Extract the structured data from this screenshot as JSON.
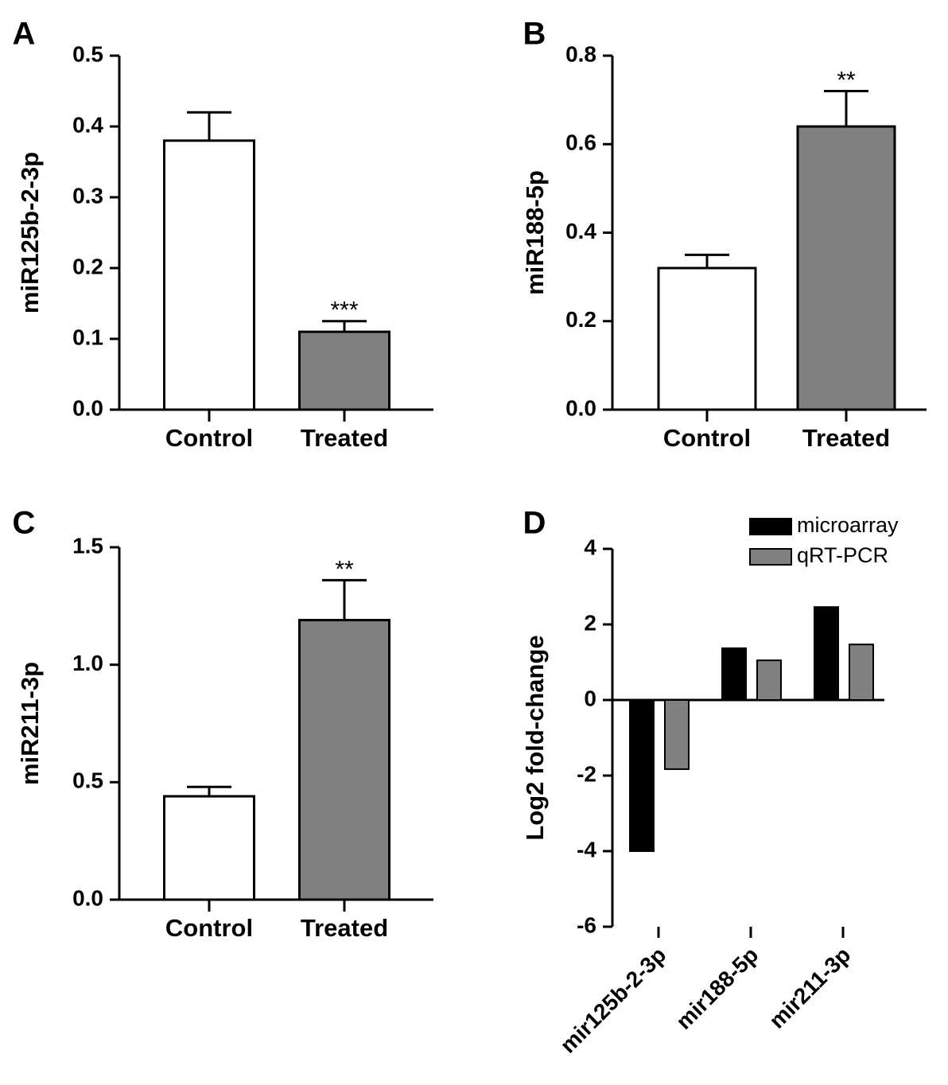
{
  "chart_data": [
    {
      "type": "bar",
      "panel": "A",
      "ylabel": "miR125b-2-3p",
      "categories": [
        "Control",
        "Treated"
      ],
      "values": [
        0.38,
        0.11
      ],
      "errors": [
        0.04,
        0.015
      ],
      "colors": [
        "#ffffff",
        "#808080"
      ],
      "significance": [
        null,
        "***"
      ],
      "ylim": [
        0,
        0.5
      ],
      "yticks": [
        {
          "value": 0,
          "label": "0.0"
        },
        0.1,
        0.2,
        0.3,
        0.4,
        0.5
      ]
    },
    {
      "type": "bar",
      "panel": "B",
      "ylabel": "miR188-5p",
      "categories": [
        "Control",
        "Treated"
      ],
      "values": [
        0.32,
        0.64
      ],
      "errors": [
        0.03,
        0.08
      ],
      "colors": [
        "#ffffff",
        "#808080"
      ],
      "significance": [
        null,
        "**"
      ],
      "ylim": [
        0,
        0.8
      ],
      "yticks": [
        {
          "value": 0,
          "label": "0.0"
        },
        0.2,
        0.4,
        0.6,
        0.8
      ]
    },
    {
      "type": "bar",
      "panel": "C",
      "ylabel": "miR211-3p",
      "categories": [
        "Control",
        "Treated"
      ],
      "values": [
        0.44,
        1.19
      ],
      "errors": [
        0.04,
        0.17
      ],
      "colors": [
        "#ffffff",
        "#808080"
      ],
      "significance": [
        null,
        "**"
      ],
      "ylim": [
        0,
        1.5
      ],
      "yticks": [
        {
          "value": 0,
          "label": "0.0"
        },
        0.5,
        {
          "value": 1,
          "label": "1.0"
        },
        1.5
      ]
    },
    {
      "type": "bar",
      "panel": "D",
      "ylabel": "Log2  fold-change",
      "categories": [
        "mir125b-2-3p",
        "mir188-5p",
        "mir211-3p"
      ],
      "series": [
        {
          "name": "microarray",
          "color": "#000000",
          "values": [
            -4,
            1.37,
            2.46
          ]
        },
        {
          "name": "qRT-PCR",
          "color": "#808080",
          "values": [
            -1.83,
            1.05,
            1.47
          ]
        }
      ],
      "ylim": [
        -6,
        4
      ],
      "yticks": [
        -6,
        -4,
        -2,
        0,
        2,
        4
      ],
      "legend": "top-right"
    }
  ]
}
